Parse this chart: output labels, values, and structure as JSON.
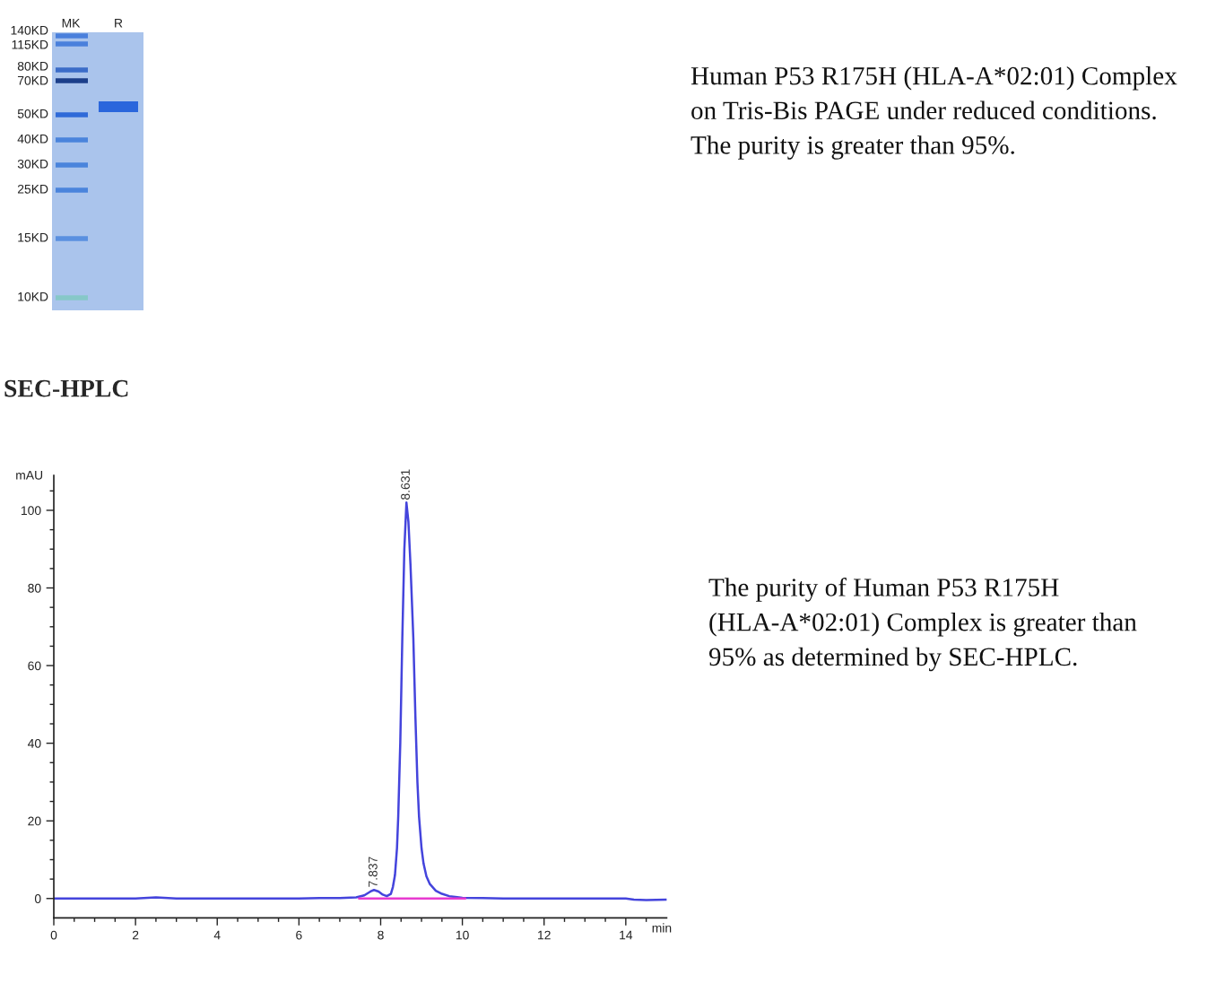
{
  "chart_data": [
    {
      "type": "other",
      "annotations": [
        "MK",
        "R",
        "140KD",
        "115KD",
        "80KD",
        "70KD",
        "50KD",
        "40KD",
        "30KD",
        "25KD",
        "15KD",
        "10KD",
        "Human P53 R175H (HLA-A*02:01) Complex on Tris-Bis PAGE under reduced conditions. The purity is greater than 95%."
      ]
    },
    {
      "type": "line",
      "title": "SEC-HPLC",
      "xlabel": "min",
      "ylabel": "mAU",
      "xlim": [
        0,
        15
      ],
      "ylim": [
        -5,
        109
      ],
      "xticks": [
        0,
        {
          "value": 0.5,
          "label": null
        },
        {
          "value": 1,
          "label": null
        },
        {
          "value": 1.5,
          "label": null
        },
        2,
        {
          "value": 2.5,
          "label": null
        },
        {
          "value": 3,
          "label": null
        },
        {
          "value": 3.5,
          "label": null
        },
        4,
        {
          "value": 4.5,
          "label": null
        },
        {
          "value": 5,
          "label": null
        },
        {
          "value": 5.5,
          "label": null
        },
        6,
        {
          "value": 6.5,
          "label": null
        },
        {
          "value": 7,
          "label": null
        },
        {
          "value": 7.5,
          "label": null
        },
        8,
        {
          "value": 8.5,
          "label": null
        },
        {
          "value": 9,
          "label": null
        },
        {
          "value": 9.5,
          "label": null
        },
        10,
        {
          "value": 10.5,
          "label": null
        },
        {
          "value": 11,
          "label": null
        },
        {
          "value": 11.5,
          "label": null
        },
        12,
        {
          "value": 12.5,
          "label": null
        },
        {
          "value": 13,
          "label": null
        },
        {
          "value": 13.5,
          "label": null
        },
        14,
        {
          "value": 14.5,
          "label": null
        }
      ],
      "yticks": [
        0,
        {
          "value": 5,
          "label": null
        },
        {
          "value": 10,
          "label": null
        },
        {
          "value": 15,
          "label": null
        },
        20,
        {
          "value": 25,
          "label": null
        },
        {
          "value": 30,
          "label": null
        },
        {
          "value": 35,
          "label": null
        },
        40,
        {
          "value": 45,
          "label": null
        },
        {
          "value": 50,
          "label": null
        },
        {
          "value": 55,
          "label": null
        },
        60,
        {
          "value": 65,
          "label": null
        },
        {
          "value": 70,
          "label": null
        },
        {
          "value": 75,
          "label": null
        },
        80,
        {
          "value": 85,
          "label": null
        },
        {
          "value": 90,
          "label": null
        },
        {
          "value": 95,
          "label": null
        },
        100,
        {
          "value": 105,
          "label": null
        }
      ],
      "series": [
        {
          "color": "#4444dc",
          "x": [
            0,
            1,
            2,
            2.5,
            3,
            4,
            5,
            6,
            6.5,
            7,
            7.4,
            7.6,
            7.75,
            7.837,
            7.95,
            8.05,
            8.15,
            8.25,
            8.3,
            8.35,
            8.4,
            8.43,
            8.48,
            8.53,
            8.58,
            8.631,
            8.68,
            8.73,
            8.8,
            8.85,
            8.9,
            8.94,
            9.0,
            9.05,
            9.12,
            9.2,
            9.35,
            9.5,
            9.68,
            10.0,
            10.5,
            11,
            12,
            13,
            14,
            14.2,
            14.5,
            15
          ],
          "values": [
            0,
            0,
            0,
            0.3,
            0,
            0,
            0,
            0,
            0.1,
            0.1,
            0.3,
            0.8,
            1.8,
            2.2,
            1.8,
            1.0,
            0.6,
            1.2,
            3,
            6,
            13,
            21,
            40,
            67,
            90,
            102,
            97,
            86,
            67,
            47,
            30,
            21,
            13,
            9,
            5.7,
            3.8,
            2.0,
            1.2,
            0.6,
            0.2,
            0.1,
            0,
            0,
            0,
            0,
            -0.3,
            -0.4,
            -0.3
          ]
        },
        {
          "color": "#e83ad0",
          "x": [
            7.47,
            10.07
          ],
          "values": [
            0,
            0
          ]
        }
      ],
      "annotations": [
        {
          "text": "8.631",
          "x": 8.631,
          "y": 102
        },
        {
          "text": "7.837",
          "x": 7.837,
          "y": 2.2
        },
        "The purity of Human P53 R175H (HLA-A*02:01) Complex is greater than 95% as determined by SEC-HPLC."
      ]
    }
  ]
}
